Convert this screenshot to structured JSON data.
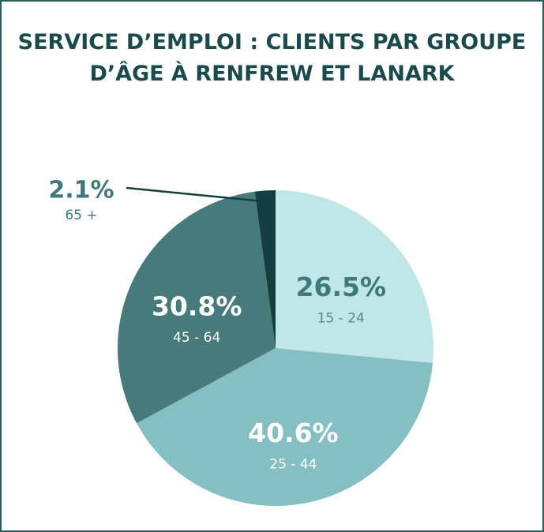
{
  "chart_data": {
    "type": "pie",
    "title": "SERVICE D’EMPLOI : CLIENTS PAR GROUPE D’ÂGE À RENFREW ET LANARK",
    "categories": [
      "15 - 24",
      "25 - 44",
      "45 - 64",
      "65 +"
    ],
    "values": [
      26.5,
      40.6,
      30.8,
      2.1
    ],
    "value_labels": [
      "26.5%",
      "40.6%",
      "30.8%",
      "2.1%"
    ],
    "colors": [
      "#c1e6e8",
      "#86bfc1",
      "#467a7b",
      "#143f42"
    ]
  }
}
